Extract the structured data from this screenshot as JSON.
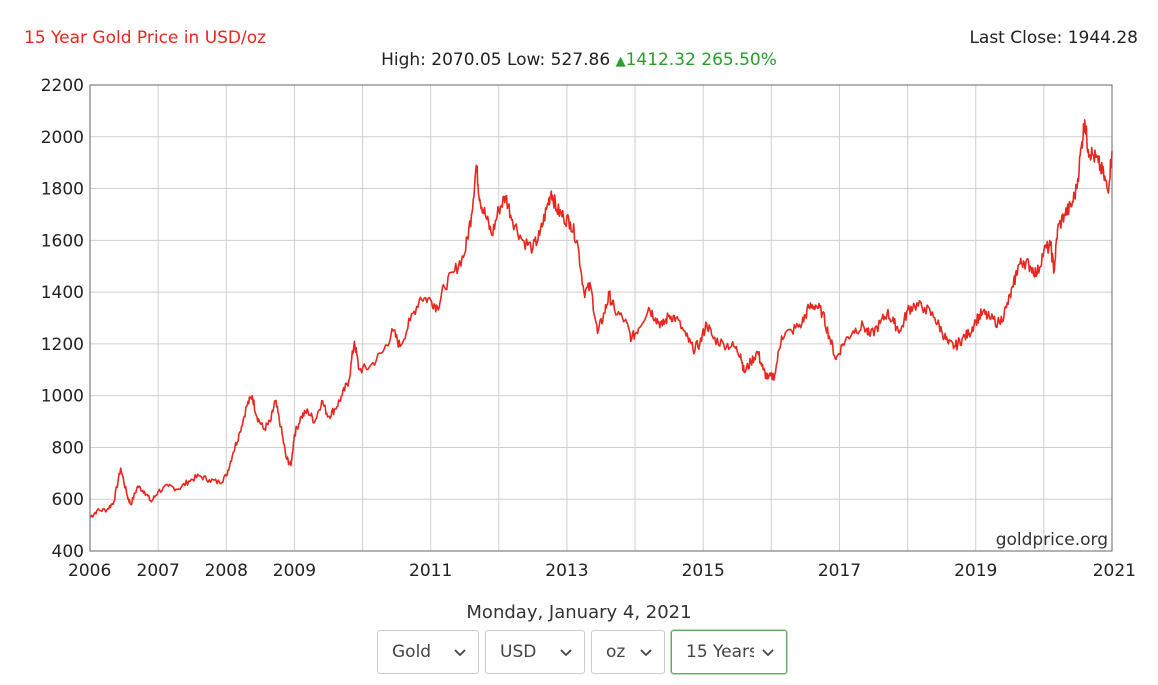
{
  "header": {
    "title": "15 Year Gold Price in USD/oz",
    "last_close": "Last Close: 1944.28",
    "stats_prefix": "High: 2070.05 Low: 527.86",
    "change_value": "1412.32 265.50%"
  },
  "watermark": "goldprice.org",
  "date_label": "Monday, January 4, 2021",
  "selectors": [
    {
      "label": "Gold"
    },
    {
      "label": "USD"
    },
    {
      "label": "oz"
    },
    {
      "label": "15 Years"
    }
  ],
  "colors": {
    "line": "#e8271e",
    "accent_title": "#e8271e",
    "up": "#2a9d2a",
    "grid": "#d0d0d0"
  },
  "chart_data": {
    "type": "line",
    "title": "15 Year Gold Price in USD/oz",
    "xlabel": "",
    "ylabel": "",
    "ylim": [
      400,
      2200
    ],
    "xlim": [
      2006.0,
      2021.0
    ],
    "y_ticks": [
      400,
      600,
      800,
      1000,
      1200,
      1400,
      1600,
      1800,
      2000,
      2200
    ],
    "x_ticks": [
      2006,
      2007,
      2008,
      2009,
      2011,
      2013,
      2015,
      2017,
      2019,
      2021
    ],
    "grid": true,
    "series": [
      {
        "name": "",
        "points": [
          [
            2006.0,
            530
          ],
          [
            2006.1,
            555
          ],
          [
            2006.25,
            560
          ],
          [
            2006.35,
            590
          ],
          [
            2006.45,
            720
          ],
          [
            2006.55,
            610
          ],
          [
            2006.6,
            580
          ],
          [
            2006.7,
            650
          ],
          [
            2006.8,
            630
          ],
          [
            2006.9,
            590
          ],
          [
            2007.0,
            630
          ],
          [
            2007.15,
            650
          ],
          [
            2007.3,
            640
          ],
          [
            2007.45,
            670
          ],
          [
            2007.6,
            690
          ],
          [
            2007.75,
            675
          ],
          [
            2007.9,
            665
          ],
          [
            2008.0,
            690
          ],
          [
            2008.1,
            780
          ],
          [
            2008.2,
            860
          ],
          [
            2008.3,
            960
          ],
          [
            2008.38,
            1000
          ],
          [
            2008.45,
            920
          ],
          [
            2008.55,
            870
          ],
          [
            2008.65,
            900
          ],
          [
            2008.72,
            980
          ],
          [
            2008.8,
            880
          ],
          [
            2008.88,
            760
          ],
          [
            2008.95,
            730
          ],
          [
            2009.0,
            850
          ],
          [
            2009.1,
            920
          ],
          [
            2009.2,
            940
          ],
          [
            2009.3,
            900
          ],
          [
            2009.4,
            980
          ],
          [
            2009.5,
            920
          ],
          [
            2009.6,
            950
          ],
          [
            2009.7,
            1000
          ],
          [
            2009.8,
            1060
          ],
          [
            2009.88,
            1210
          ],
          [
            2009.95,
            1100
          ],
          [
            2010.1,
            1110
          ],
          [
            2010.3,
            1170
          ],
          [
            2010.45,
            1250
          ],
          [
            2010.55,
            1190
          ],
          [
            2010.7,
            1290
          ],
          [
            2010.85,
            1380
          ],
          [
            2011.0,
            1370
          ],
          [
            2011.1,
            1340
          ],
          [
            2011.2,
            1420
          ],
          [
            2011.35,
            1480
          ],
          [
            2011.5,
            1550
          ],
          [
            2011.6,
            1700
          ],
          [
            2011.67,
            1890
          ],
          [
            2011.72,
            1760
          ],
          [
            2011.8,
            1700
          ],
          [
            2011.9,
            1620
          ],
          [
            2012.0,
            1720
          ],
          [
            2012.1,
            1770
          ],
          [
            2012.2,
            1680
          ],
          [
            2012.35,
            1600
          ],
          [
            2012.5,
            1570
          ],
          [
            2012.6,
            1620
          ],
          [
            2012.7,
            1720
          ],
          [
            2012.77,
            1790
          ],
          [
            2012.85,
            1720
          ],
          [
            2012.95,
            1690
          ],
          [
            2013.05,
            1670
          ],
          [
            2013.15,
            1600
          ],
          [
            2013.25,
            1400
          ],
          [
            2013.35,
            1420
          ],
          [
            2013.45,
            1240
          ],
          [
            2013.55,
            1320
          ],
          [
            2013.62,
            1390
          ],
          [
            2013.7,
            1330
          ],
          [
            2013.85,
            1290
          ],
          [
            2013.95,
            1220
          ],
          [
            2014.05,
            1260
          ],
          [
            2014.2,
            1340
          ],
          [
            2014.3,
            1300
          ],
          [
            2014.4,
            1270
          ],
          [
            2014.5,
            1310
          ],
          [
            2014.6,
            1300
          ],
          [
            2014.75,
            1230
          ],
          [
            2014.85,
            1180
          ],
          [
            2014.95,
            1200
          ],
          [
            2015.05,
            1280
          ],
          [
            2015.15,
            1220
          ],
          [
            2015.3,
            1200
          ],
          [
            2015.45,
            1190
          ],
          [
            2015.55,
            1160
          ],
          [
            2015.6,
            1090
          ],
          [
            2015.7,
            1130
          ],
          [
            2015.8,
            1170
          ],
          [
            2015.88,
            1100
          ],
          [
            2015.95,
            1065
          ],
          [
            2016.05,
            1080
          ],
          [
            2016.15,
            1230
          ],
          [
            2016.3,
            1250
          ],
          [
            2016.45,
            1280
          ],
          [
            2016.55,
            1340
          ],
          [
            2016.65,
            1350
          ],
          [
            2016.75,
            1320
          ],
          [
            2016.85,
            1230
          ],
          [
            2016.95,
            1140
          ],
          [
            2017.05,
            1200
          ],
          [
            2017.2,
            1250
          ],
          [
            2017.35,
            1270
          ],
          [
            2017.45,
            1230
          ],
          [
            2017.6,
            1280
          ],
          [
            2017.7,
            1320
          ],
          [
            2017.8,
            1280
          ],
          [
            2017.9,
            1250
          ],
          [
            2018.0,
            1330
          ],
          [
            2018.1,
            1350
          ],
          [
            2018.25,
            1340
          ],
          [
            2018.4,
            1300
          ],
          [
            2018.5,
            1250
          ],
          [
            2018.6,
            1200
          ],
          [
            2018.7,
            1190
          ],
          [
            2018.8,
            1220
          ],
          [
            2018.9,
            1240
          ],
          [
            2019.0,
            1290
          ],
          [
            2019.1,
            1320
          ],
          [
            2019.2,
            1300
          ],
          [
            2019.35,
            1280
          ],
          [
            2019.45,
            1340
          ],
          [
            2019.55,
            1420
          ],
          [
            2019.62,
            1500
          ],
          [
            2019.7,
            1520
          ],
          [
            2019.8,
            1500
          ],
          [
            2019.9,
            1470
          ],
          [
            2020.0,
            1560
          ],
          [
            2020.1,
            1580
          ],
          [
            2020.15,
            1480
          ],
          [
            2020.2,
            1640
          ],
          [
            2020.3,
            1700
          ],
          [
            2020.4,
            1730
          ],
          [
            2020.48,
            1800
          ],
          [
            2020.55,
            1960
          ],
          [
            2020.6,
            2065
          ],
          [
            2020.65,
            1950
          ],
          [
            2020.72,
            1930
          ],
          [
            2020.8,
            1900
          ],
          [
            2020.88,
            1850
          ],
          [
            2020.94,
            1790
          ],
          [
            2021.0,
            1944
          ]
        ]
      }
    ]
  }
}
